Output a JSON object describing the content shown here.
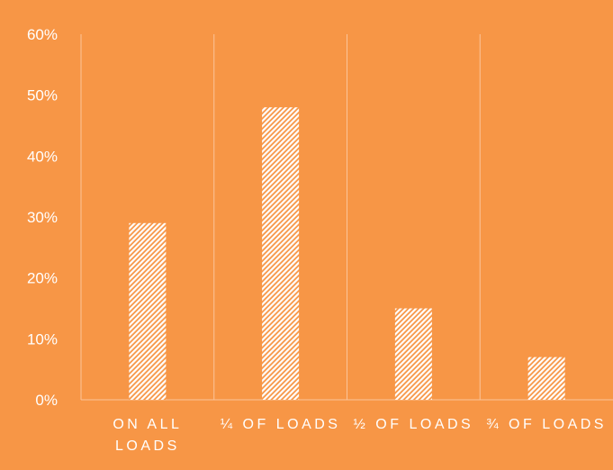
{
  "colors": {
    "background": "#F79646",
    "bar": "#FFFFFF",
    "text": "#FFFFFF",
    "gridline": "#FBC49A"
  },
  "chart_data": {
    "type": "bar",
    "title": "",
    "xlabel": "",
    "ylabel": "",
    "categories": [
      "ON ALL LOADS",
      "¼ OF LOADS",
      "½ OF LOADS",
      "¾ OF LOADS"
    ],
    "category_lines": [
      [
        "ON ALL",
        "LOADS"
      ],
      [
        "¼ OF LOADS"
      ],
      [
        "½ OF LOADS"
      ],
      [
        "¾ OF LOADS"
      ]
    ],
    "values": [
      0.29,
      0.48,
      0.15,
      0.07
    ],
    "ylim": [
      0,
      0.6
    ],
    "y_ticks": [
      0,
      0.1,
      0.2,
      0.3,
      0.4,
      0.5,
      0.6
    ],
    "y_tick_labels": [
      "0%",
      "10%",
      "20%",
      "30%",
      "40%",
      "50%",
      "60%"
    ],
    "bar_fill": "diagonal hatch",
    "grid": "vertical category separators",
    "legend": "none"
  }
}
